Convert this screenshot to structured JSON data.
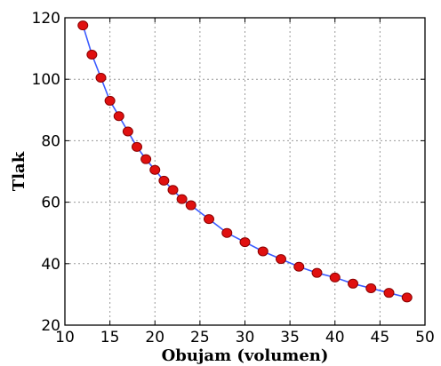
{
  "chart_data": {
    "type": "line",
    "title": "",
    "xlabel": "Obujam (volumen)",
    "ylabel": "Tlak",
    "xlim": [
      10,
      50
    ],
    "ylim": [
      20,
      120
    ],
    "xticks": [
      10,
      15,
      20,
      25,
      30,
      35,
      40,
      45,
      50
    ],
    "yticks": [
      20,
      40,
      60,
      80,
      100,
      120
    ],
    "grid": true,
    "legend": "none",
    "series": [
      {
        "line_color": "#3b5bff",
        "marker_color": "#e01010",
        "marker_edge_color": "#8a0000",
        "x": [
          12,
          13,
          14,
          15,
          16,
          17,
          18,
          19,
          20,
          21,
          22,
          23,
          24,
          26,
          28,
          30,
          32,
          34,
          36,
          38,
          40,
          42,
          44,
          46,
          48
        ],
        "y": [
          117.5,
          108,
          100.5,
          93,
          88,
          83,
          78,
          74,
          70.5,
          67,
          64,
          61,
          59,
          54.5,
          50,
          47,
          44,
          41.5,
          39,
          37,
          35.5,
          33.5,
          32,
          30.5,
          29
        ]
      }
    ]
  }
}
